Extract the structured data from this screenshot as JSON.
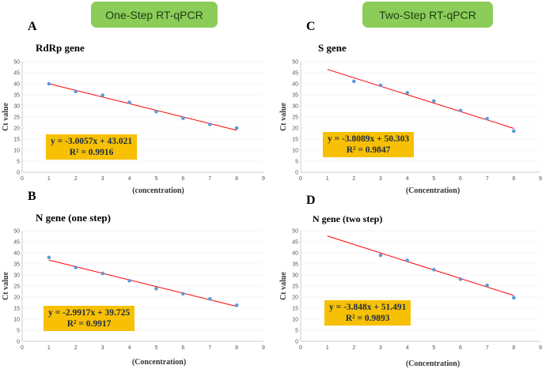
{
  "banners": {
    "left": "One-Step RT-qPCR",
    "right": "Two-Step RT-qPCR"
  },
  "chart_data": [
    {
      "type": "scatter",
      "panel": "A",
      "title": "RdRp gene",
      "xlabel": "(concentration)",
      "ylabel": "Ct value",
      "xlim": [
        0,
        9
      ],
      "ylim": [
        0,
        50
      ],
      "xticks": [
        "0",
        "1",
        "2",
        "3",
        "4",
        "5",
        "6",
        "7",
        "8",
        "9"
      ],
      "yticks": [
        "0",
        "5",
        "10",
        "15",
        "20",
        "25",
        "30",
        "35",
        "40",
        "45",
        "50"
      ],
      "x": [
        1,
        2,
        3,
        4,
        5,
        6,
        7,
        8
      ],
      "y": [
        40.0,
        36.5,
        34.8,
        31.6,
        27.4,
        24.4,
        21.6,
        20.0
      ],
      "trendline": {
        "slope": -3.0057,
        "intercept": 43.021,
        "x_range": [
          1,
          8
        ]
      },
      "equation": "y = -3.0057x + 43.021",
      "r2": "R² = 0.9916",
      "colors": {
        "points": "#5b9bd5",
        "trendline": "#ff0000",
        "label_box": "#f7c004"
      }
    },
    {
      "type": "scatter",
      "panel": "C",
      "title": "S gene",
      "xlabel": "(Concentration)",
      "ylabel": "Ct value",
      "xlim": [
        0,
        9
      ],
      "ylim": [
        0,
        50
      ],
      "xticks": [
        "0",
        "1",
        "2",
        "3",
        "4",
        "5",
        "6",
        "7",
        "8",
        "9"
      ],
      "yticks": [
        "0",
        "5",
        "10",
        "15",
        "20",
        "25",
        "30",
        "35",
        "40",
        "45",
        "50"
      ],
      "x": [
        2,
        3,
        4,
        5,
        6,
        7,
        8
      ],
      "y": [
        41.1,
        39.3,
        35.9,
        32.2,
        27.9,
        24.2,
        18.6
      ],
      "trendline": {
        "slope": -3.8089,
        "intercept": 50.303,
        "x_range": [
          1,
          8
        ]
      },
      "equation": "y = -3.8089x + 50.303",
      "r2": "R² = 0.9847",
      "colors": {
        "points": "#5b9bd5",
        "trendline": "#ff0000",
        "label_box": "#f7c004"
      }
    },
    {
      "type": "scatter",
      "panel": "B",
      "title": "N gene (one step)",
      "xlabel": "(Concentration)",
      "ylabel": "Ct value",
      "xlim": [
        0,
        9
      ],
      "ylim": [
        0,
        50
      ],
      "xticks": [
        "0",
        "1",
        "2",
        "3",
        "4",
        "5",
        "6",
        "7",
        "8",
        "9"
      ],
      "yticks": [
        "0",
        "5",
        "10",
        "15",
        "20",
        "25",
        "30",
        "35",
        "40",
        "45",
        "50"
      ],
      "x": [
        1,
        2,
        3,
        4,
        5,
        6,
        7,
        8
      ],
      "y": [
        37.9,
        33.4,
        30.7,
        27.4,
        23.8,
        21.5,
        19.2,
        16.3
      ],
      "trendline": {
        "slope": -2.9917,
        "intercept": 39.725,
        "x_range": [
          1,
          8
        ]
      },
      "equation": "y = -2.9917x + 39.725",
      "r2": "R² = 0.9917",
      "colors": {
        "points": "#5b9bd5",
        "trendline": "#ff0000",
        "label_box": "#f7c004"
      }
    },
    {
      "type": "scatter",
      "panel": "D",
      "title": "N gene (two step)",
      "xlabel": "(Concentration)",
      "ylabel": "Ct value",
      "xlim": [
        0,
        9
      ],
      "ylim": [
        0,
        50
      ],
      "xticks": [
        "0",
        "1",
        "2",
        "3",
        "4",
        "5",
        "6",
        "7",
        "8",
        "9"
      ],
      "yticks": [
        "0",
        "5",
        "10",
        "15",
        "20",
        "25",
        "30",
        "35",
        "40",
        "45",
        "50"
      ],
      "x": [
        3,
        4,
        5,
        6,
        7,
        8
      ],
      "y": [
        38.9,
        36.6,
        32.4,
        28.1,
        25.3,
        19.7
      ],
      "trendline": {
        "slope": -3.848,
        "intercept": 51.491,
        "x_range": [
          1,
          8
        ]
      },
      "equation": "y = -3.848x + 51.491",
      "r2": "R² = 0.9893",
      "colors": {
        "points": "#5b9bd5",
        "trendline": "#ff0000",
        "label_box": "#f7c004"
      }
    }
  ]
}
